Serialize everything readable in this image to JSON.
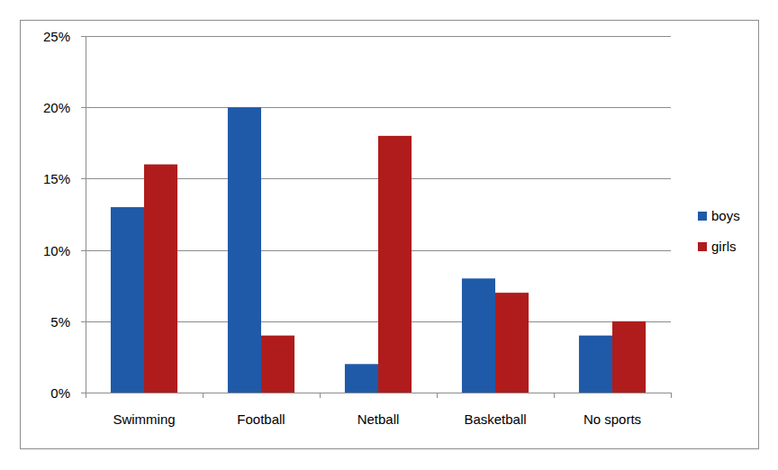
{
  "chart_data": {
    "type": "bar",
    "categories": [
      "Swimming",
      "Football",
      "Netball",
      "Basketball",
      "No sports"
    ],
    "series": [
      {
        "name": "boys",
        "color": "#1f5aa8",
        "values": [
          13,
          20,
          2,
          8,
          4
        ]
      },
      {
        "name": "girls",
        "color": "#b01c1c",
        "values": [
          16,
          4,
          18,
          7,
          5
        ]
      }
    ],
    "ylim": [
      0,
      25
    ],
    "yticks": [
      {
        "value": 0,
        "label": "0%"
      },
      {
        "value": 5,
        "label": "5%"
      },
      {
        "value": 10,
        "label": "10%"
      },
      {
        "value": 15,
        "label": "15%"
      },
      {
        "value": 20,
        "label": "20%"
      },
      {
        "value": 25,
        "label": "25%"
      }
    ],
    "grid": true,
    "legend": "right"
  }
}
